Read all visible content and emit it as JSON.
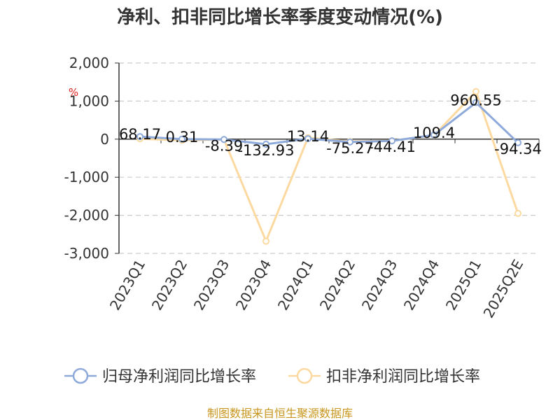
{
  "chart_data": {
    "type": "line",
    "title": "净利、扣非同比增长率季度变动情况(%)",
    "ylabel": "%",
    "categories": [
      "2023Q1",
      "2023Q2",
      "2023Q3",
      "2023Q4",
      "2024Q1",
      "2024Q2",
      "2024Q3",
      "2024Q4",
      "2025Q1",
      "2025Q2E"
    ],
    "ylim": [
      -3000,
      2000
    ],
    "yticks": [
      2000,
      1000,
      0,
      -1000,
      -2000,
      -3000
    ],
    "ytick_labels": [
      "2,000",
      "1,000",
      "0",
      "-1,000",
      "-2,000",
      "-3,000"
    ],
    "grid": true,
    "legend_position": "bottom",
    "series": [
      {
        "name": "归母净利润同比增长率",
        "color": "#8eaadb",
        "values": [
          68.17,
          0.31,
          -8.39,
          -132.93,
          13.14,
          -75.27,
          -44.41,
          109.4,
          960.55,
          -94.34
        ],
        "labels": [
          "68.17",
          "0.31",
          "-8.39",
          "-132.93",
          "13.14",
          "-75.27",
          "-44.41",
          "109.4",
          "960.55",
          "-94.34"
        ]
      },
      {
        "name": "扣非净利润同比增长率",
        "color": "#fcd9a0",
        "values": [
          10,
          -30,
          -10,
          -2680,
          40,
          -60,
          -40,
          100,
          1250,
          -1950
        ]
      }
    ],
    "source": "制图数据来自恒生聚源数据库"
  }
}
